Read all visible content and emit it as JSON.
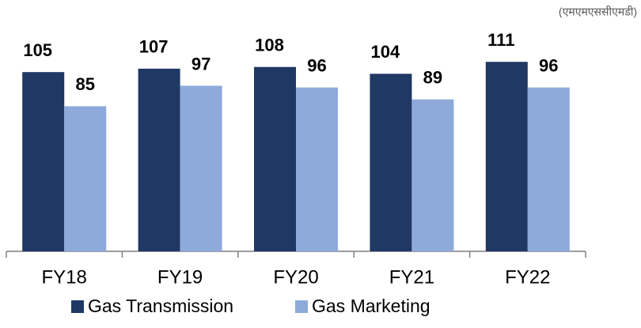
{
  "chart_data": {
    "type": "bar",
    "unit_label": "(एमएमएससीएमडी)",
    "categories": [
      "FY18",
      "FY19",
      "FY20",
      "FY21",
      "FY22"
    ],
    "series": [
      {
        "name": "Gas Transmission",
        "color": "#1f3864",
        "values": [
          105,
          107,
          108,
          104,
          111
        ]
      },
      {
        "name": "Gas Marketing",
        "color": "#8eaadb",
        "values": [
          85,
          97,
          96,
          89,
          96
        ]
      }
    ]
  }
}
